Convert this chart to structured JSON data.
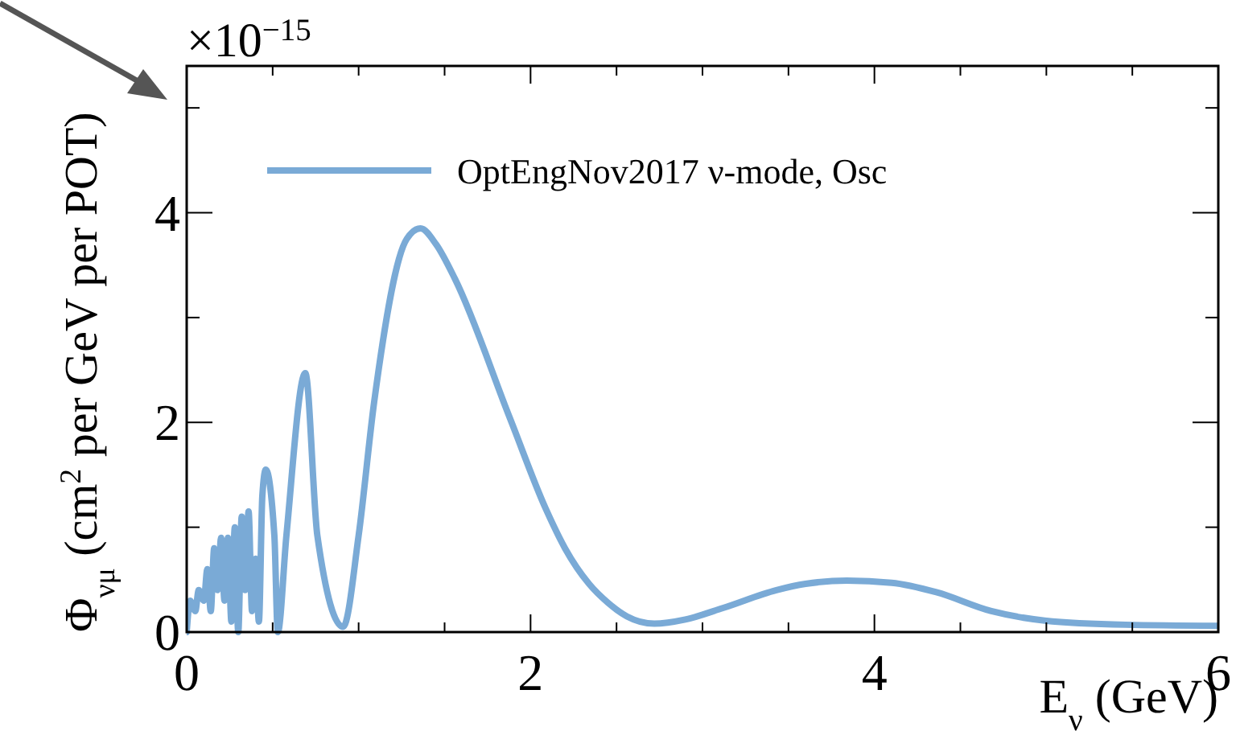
{
  "chart_data": {
    "type": "line",
    "xlabel": "E$_{ν}$ (GeV)",
    "ylabel": "Φ$_{νμ}$ (cm$^{2}$ per GeV per POT)",
    "annotations": [
      "×10$^{−15}$"
    ],
    "xlim": [
      0,
      6
    ],
    "xticks": [
      0,
      {
        "value": 0.5,
        "label": null
      },
      {
        "value": 1,
        "label": null
      },
      {
        "value": 1.5,
        "label": null
      },
      2,
      {
        "value": 2.5,
        "label": null
      },
      {
        "value": 3,
        "label": null
      },
      {
        "value": 3.5,
        "label": null
      },
      4,
      {
        "value": 4.5,
        "label": null
      },
      {
        "value": 5,
        "label": null
      },
      {
        "value": 5.5,
        "label": null
      },
      6
    ],
    "ylim": [
      0,
      5.4
    ],
    "yticks": [
      0,
      {
        "value": 1,
        "label": null
      },
      2,
      {
        "value": 3,
        "label": null
      },
      4,
      {
        "value": 5,
        "label": null
      }
    ],
    "grid": false,
    "legend": "top left",
    "marker": "none",
    "line_style": "solid",
    "series": [
      {
        "name": "OptEngNov2017 ν-mode, Osc",
        "color": "#7aaad6",
        "x": [
          0,
          0.02,
          0.05,
          0.07,
          0.1,
          0.12,
          0.14,
          0.16,
          0.18,
          0.2,
          0.22,
          0.24,
          0.26,
          0.28,
          0.3,
          0.32,
          0.34,
          0.36,
          0.38,
          0.4,
          0.42,
          0.44,
          0.46,
          0.51,
          0.53,
          0.58,
          0.69,
          0.76,
          0.91,
          1.0,
          1.09,
          1.28,
          1.36,
          1.45,
          1.56,
          1.88,
          2.09,
          2.2,
          2.34,
          2.45,
          2.56,
          2.72,
          2.9,
          3.12,
          3.43,
          3.6,
          3.84,
          4.1,
          4.36,
          4.68,
          4.99,
          5.46,
          6
        ],
        "values": [
          0,
          0.3,
          0.2,
          0.4,
          0.3,
          0.6,
          0.2,
          0.8,
          0.4,
          0.9,
          0.3,
          0.9,
          0.1,
          1.0,
          0,
          1.1,
          0.4,
          1.15,
          0.2,
          0.7,
          0.1,
          1.3,
          1.55,
          0.92,
          0,
          0.92,
          2.47,
          0.92,
          0.05,
          0.92,
          2.19,
          3.75,
          3.85,
          3.7,
          3.37,
          2.04,
          1.17,
          0.8,
          0.46,
          0.28,
          0.15,
          0.08,
          0.12,
          0.23,
          0.4,
          0.46,
          0.49,
          0.47,
          0.38,
          0.2,
          0.11,
          0.07,
          0.06
        ]
      }
    ]
  }
}
